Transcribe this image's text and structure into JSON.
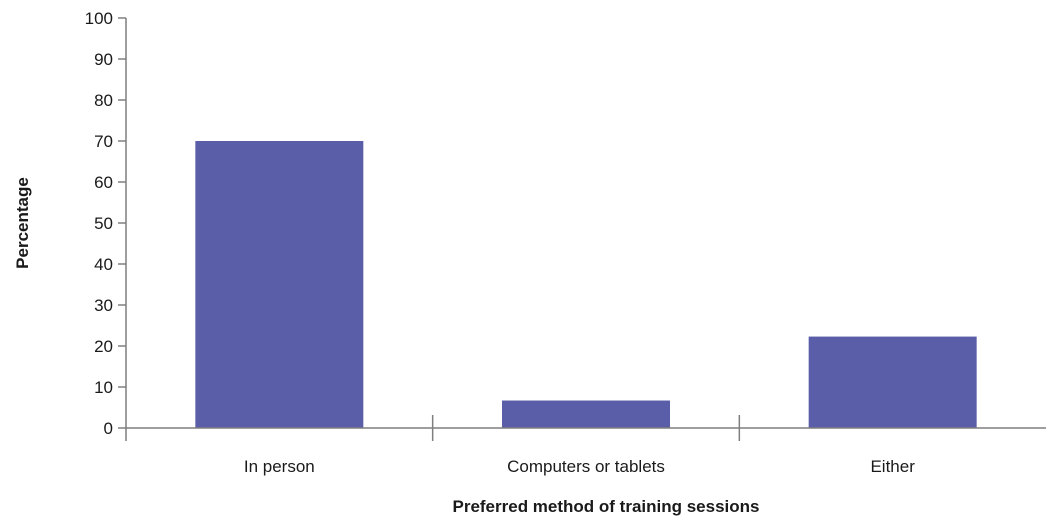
{
  "chart_data": {
    "type": "bar",
    "categories": [
      "In person",
      "Computers or tablets",
      "Either"
    ],
    "values": [
      70,
      6.7,
      22.3
    ],
    "xlabel": "Preferred method of training sessions",
    "ylabel": "Percentage",
    "ylim": [
      0,
      100
    ],
    "yticks": [
      0,
      10,
      20,
      30,
      40,
      50,
      60,
      70,
      80,
      90,
      100
    ],
    "grid": false,
    "legend": "none",
    "bar_color": "#5a5ea8",
    "axis_color": "#7f7f7f"
  }
}
